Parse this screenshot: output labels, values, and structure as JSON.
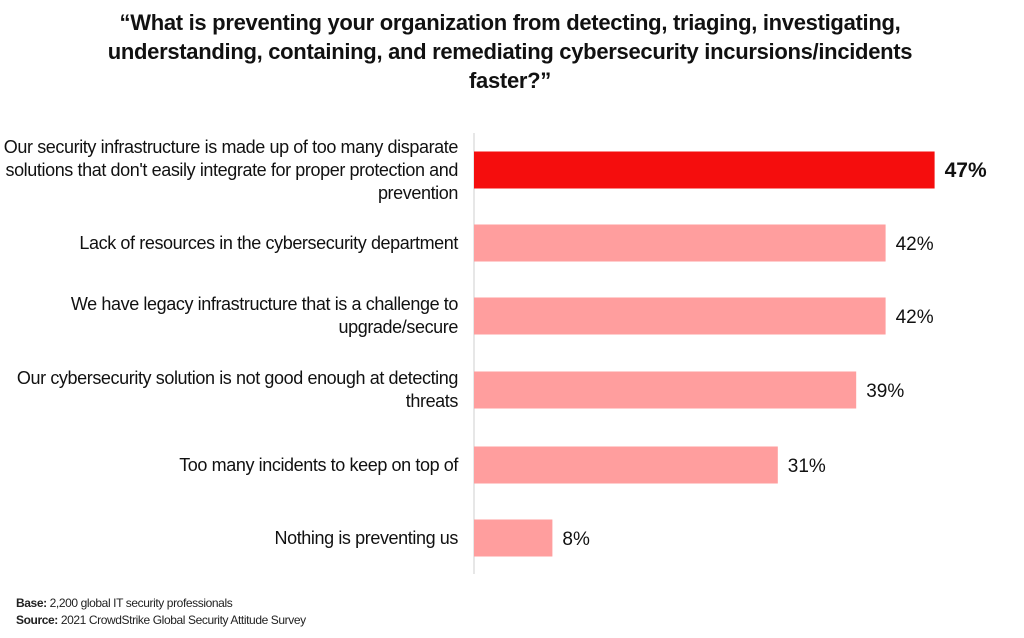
{
  "chart_data": {
    "type": "bar",
    "orientation": "horizontal",
    "title": "“What is preventing your organization from detecting, triaging, investigating, understanding, containing, and remediating cybersecurity incursions/incidents faster?”",
    "categories": [
      "Our security infrastructure is made up of too many disparate solutions that don't easily integrate for proper protection and prevention",
      "Lack of resources in the cybersecurity department",
      "We have legacy infrastructure that is a challenge to upgrade/secure",
      "Our cybersecurity solution is not good enough at detecting threats",
      "Too many incidents to keep on top of",
      "Nothing is preventing us"
    ],
    "values": [
      47,
      42,
      42,
      39,
      31,
      8
    ],
    "value_labels": [
      "47%",
      "42%",
      "42%",
      "39%",
      "31%",
      "8%"
    ],
    "highlight_index": 0,
    "xlim": [
      0,
      50
    ],
    "grid": false,
    "legend": "none"
  },
  "colors": {
    "highlight": "#f50d0d",
    "bar": "#ff9e9e",
    "axis": "#cfcfcf"
  },
  "footnotes": {
    "base_label": "Base:",
    "base_text": "2,200 global IT security professionals",
    "source_label": "Source:",
    "source_text": "2021 CrowdStrike Global Security Attitude Survey"
  }
}
